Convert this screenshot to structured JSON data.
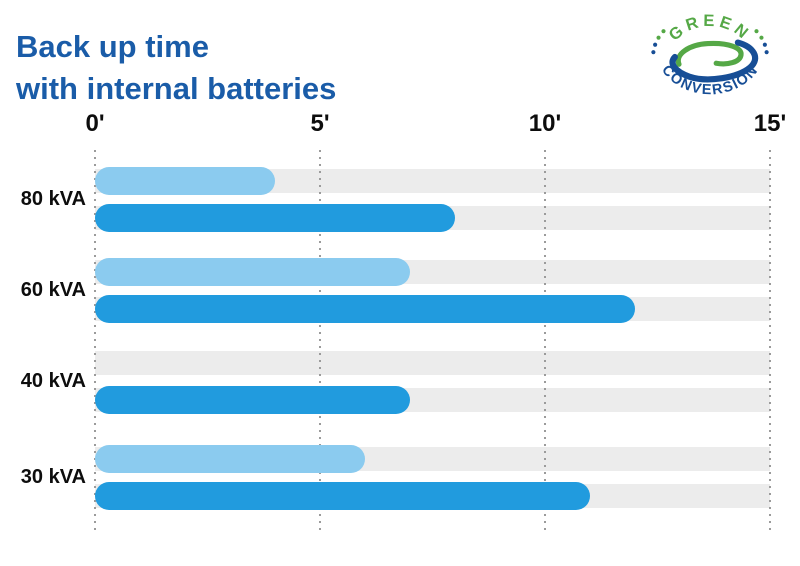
{
  "title": {
    "line1": "Back up time",
    "line2": "with internal batteries"
  },
  "logo": {
    "top_text": "GREEN",
    "bottom_text": "CONVERSION",
    "green_color": "#55A846",
    "blue_color": "#174E96"
  },
  "colors": {
    "title_blue": "#1A5CA8",
    "light_bar": "#8BCBEF",
    "dark_bar": "#219BDE",
    "track_gray": "#ECECEC",
    "gridline_gray": "#9B9B9B",
    "label_black": "#0D0D0D"
  },
  "chart_data": {
    "type": "bar",
    "orientation": "horizontal",
    "title": "Back up time with internal batteries",
    "categories": [
      "80 kVA",
      "60 kVA",
      "40 kVA",
      "30 kVA"
    ],
    "series": [
      {
        "name": "light-blue",
        "color": "#8BCBEF",
        "values": [
          4,
          7,
          null,
          6
        ]
      },
      {
        "name": "dark-blue",
        "color": "#219BDE",
        "values": [
          8,
          12,
          7,
          11
        ]
      }
    ],
    "x_ticks": [
      "0'",
      "5'",
      "10'",
      "15'"
    ],
    "x_tick_values": [
      0,
      5,
      10,
      15
    ],
    "xlim": [
      0,
      15
    ],
    "unit": "minutes",
    "grid": "vertical-dotted",
    "legend": "none",
    "track_full_width": true
  }
}
